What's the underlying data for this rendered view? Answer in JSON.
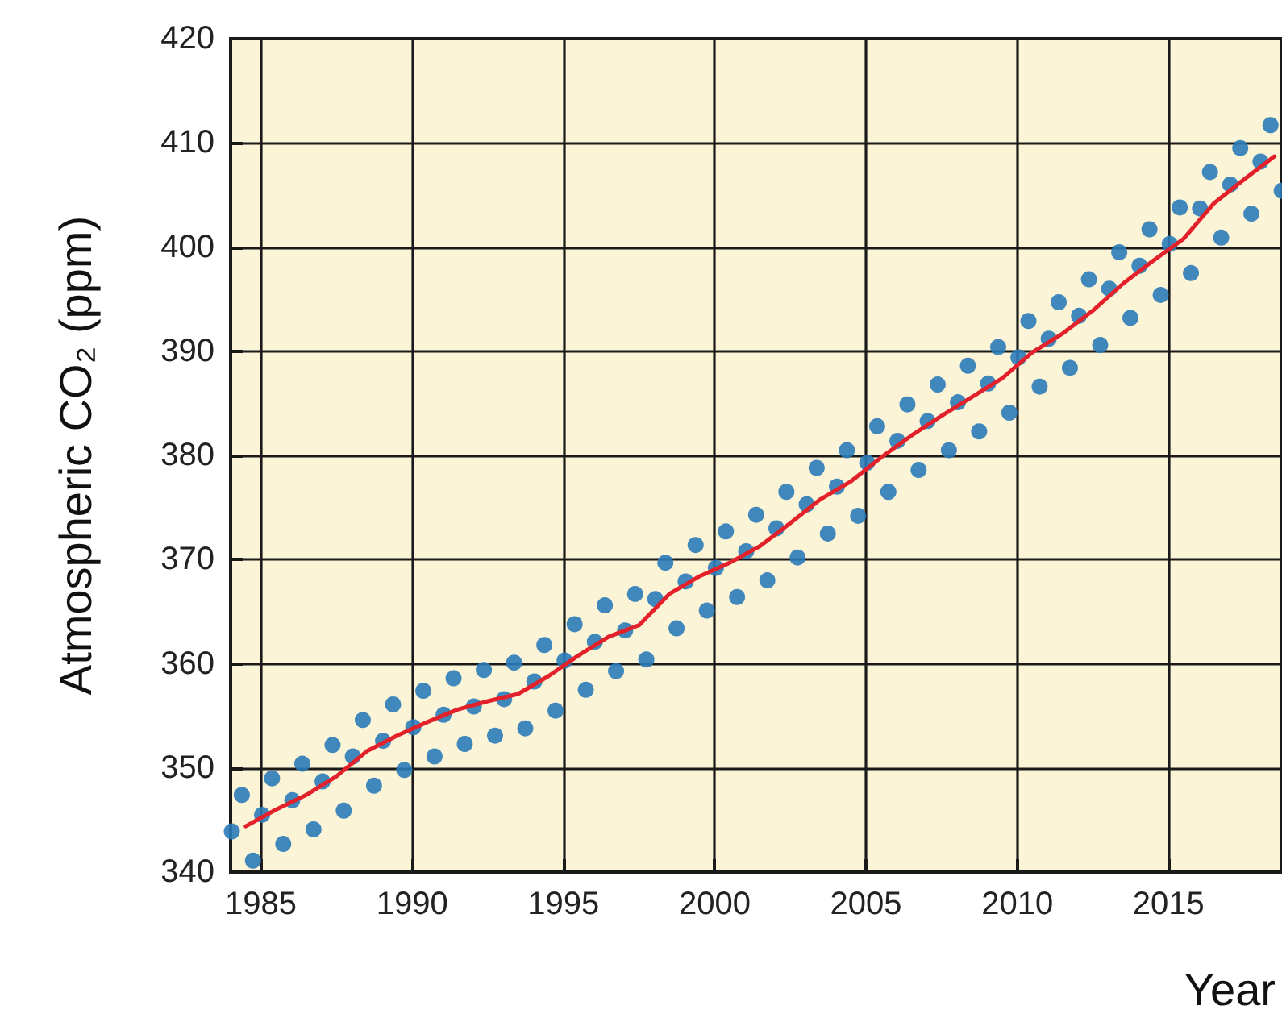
{
  "chart_data": {
    "type": "scatter",
    "xlabel": "Year",
    "ylabel": "Atmospheric CO₂ (ppm)",
    "xlim": [
      1984,
      2018.75
    ],
    "xticks": [
      1985,
      1990,
      1995,
      2000,
      2005,
      2010,
      2015
    ],
    "ylim": [
      340,
      420
    ],
    "yticks": [
      340,
      350,
      360,
      370,
      380,
      390,
      400,
      410,
      420
    ],
    "grid": true,
    "marker": "circle",
    "series": [
      {
        "color": "#2b7bb9",
        "x": [
          1984.04,
          1984.37,
          1984.74,
          1985.04,
          1985.37,
          1985.74,
          1986.04,
          1986.37,
          1986.74,
          1987.04,
          1987.37,
          1987.74,
          1988.04,
          1988.37,
          1988.74,
          1989.04,
          1989.37,
          1989.74,
          1990.04,
          1990.37,
          1990.74,
          1991.04,
          1991.37,
          1991.74,
          1992.04,
          1992.37,
          1992.74,
          1993.04,
          1993.37,
          1993.74,
          1994.04,
          1994.37,
          1994.74,
          1995.04,
          1995.37,
          1995.74,
          1996.04,
          1996.37,
          1996.74,
          1997.04,
          1997.37,
          1997.74,
          1998.04,
          1998.37,
          1998.74,
          1999.04,
          1999.37,
          1999.74,
          2000.04,
          2000.37,
          2000.74,
          2001.04,
          2001.37,
          2001.74,
          2002.04,
          2002.37,
          2002.74,
          2003.04,
          2003.37,
          2003.74,
          2004.04,
          2004.37,
          2004.74,
          2005.04,
          2005.37,
          2005.74,
          2006.04,
          2006.37,
          2006.74,
          2007.04,
          2007.37,
          2007.74,
          2008.04,
          2008.37,
          2008.74,
          2009.04,
          2009.37,
          2009.74,
          2010.04,
          2010.37,
          2010.74,
          2011.04,
          2011.37,
          2011.74,
          2012.04,
          2012.37,
          2012.74,
          2013.04,
          2013.37,
          2013.74,
          2014.04,
          2014.37,
          2014.74,
          2015.04,
          2015.37,
          2015.74,
          2016.04,
          2016.37,
          2016.74,
          2017.04,
          2017.37,
          2017.74,
          2018.04,
          2018.37,
          2018.74
        ],
        "values": [
          343.9,
          347.4,
          341.1,
          345.5,
          349.0,
          342.7,
          346.9,
          350.4,
          344.1,
          348.7,
          352.2,
          345.9,
          351.1,
          354.6,
          348.3,
          352.6,
          356.1,
          349.8,
          353.9,
          357.4,
          351.1,
          355.1,
          358.6,
          352.3,
          355.9,
          359.4,
          353.1,
          356.6,
          360.1,
          353.8,
          358.3,
          361.8,
          355.5,
          360.3,
          363.8,
          357.5,
          362.1,
          365.6,
          359.3,
          363.2,
          366.7,
          360.4,
          366.2,
          369.7,
          363.4,
          367.9,
          371.4,
          365.1,
          369.2,
          372.7,
          366.4,
          370.8,
          374.3,
          368.0,
          373.0,
          376.5,
          370.2,
          375.3,
          378.8,
          372.5,
          377.0,
          380.5,
          374.2,
          379.3,
          382.8,
          376.5,
          381.4,
          384.9,
          378.6,
          383.3,
          386.8,
          380.5,
          385.1,
          388.6,
          382.3,
          386.9,
          390.4,
          384.1,
          389.4,
          392.9,
          386.6,
          391.2,
          394.7,
          388.4,
          393.4,
          396.9,
          390.6,
          396.0,
          399.5,
          393.2,
          398.2,
          401.7,
          395.4,
          400.3,
          403.8,
          397.5,
          403.7,
          407.2,
          400.9,
          406.0,
          409.5,
          403.2,
          408.2,
          411.7,
          405.4
        ]
      },
      {
        "type": "line",
        "color": "#e3212b",
        "marker": "none",
        "x": [
          1984.5,
          1985.5,
          1986.5,
          1987.5,
          1988.5,
          1989.5,
          1990.5,
          1991.5,
          1992.5,
          1993.5,
          1994.5,
          1995.5,
          1996.5,
          1997.5,
          1998.5,
          1999.5,
          2000.5,
          2001.5,
          2002.5,
          2003.5,
          2004.5,
          2005.5,
          2006.5,
          2007.5,
          2008.5,
          2009.5,
          2010.5,
          2011.5,
          2012.5,
          2013.5,
          2014.5,
          2015.5,
          2016.5,
          2017.5,
          2018.5
        ],
        "values": [
          344.4,
          346.0,
          347.4,
          349.2,
          351.6,
          353.1,
          354.4,
          355.6,
          356.4,
          357.1,
          358.8,
          360.8,
          362.6,
          363.7,
          366.7,
          368.4,
          369.7,
          371.3,
          373.5,
          375.8,
          377.5,
          379.8,
          381.9,
          383.8,
          385.6,
          387.4,
          389.9,
          391.7,
          393.9,
          396.5,
          398.7,
          400.8,
          404.2,
          406.5,
          408.7
        ]
      }
    ]
  }
}
